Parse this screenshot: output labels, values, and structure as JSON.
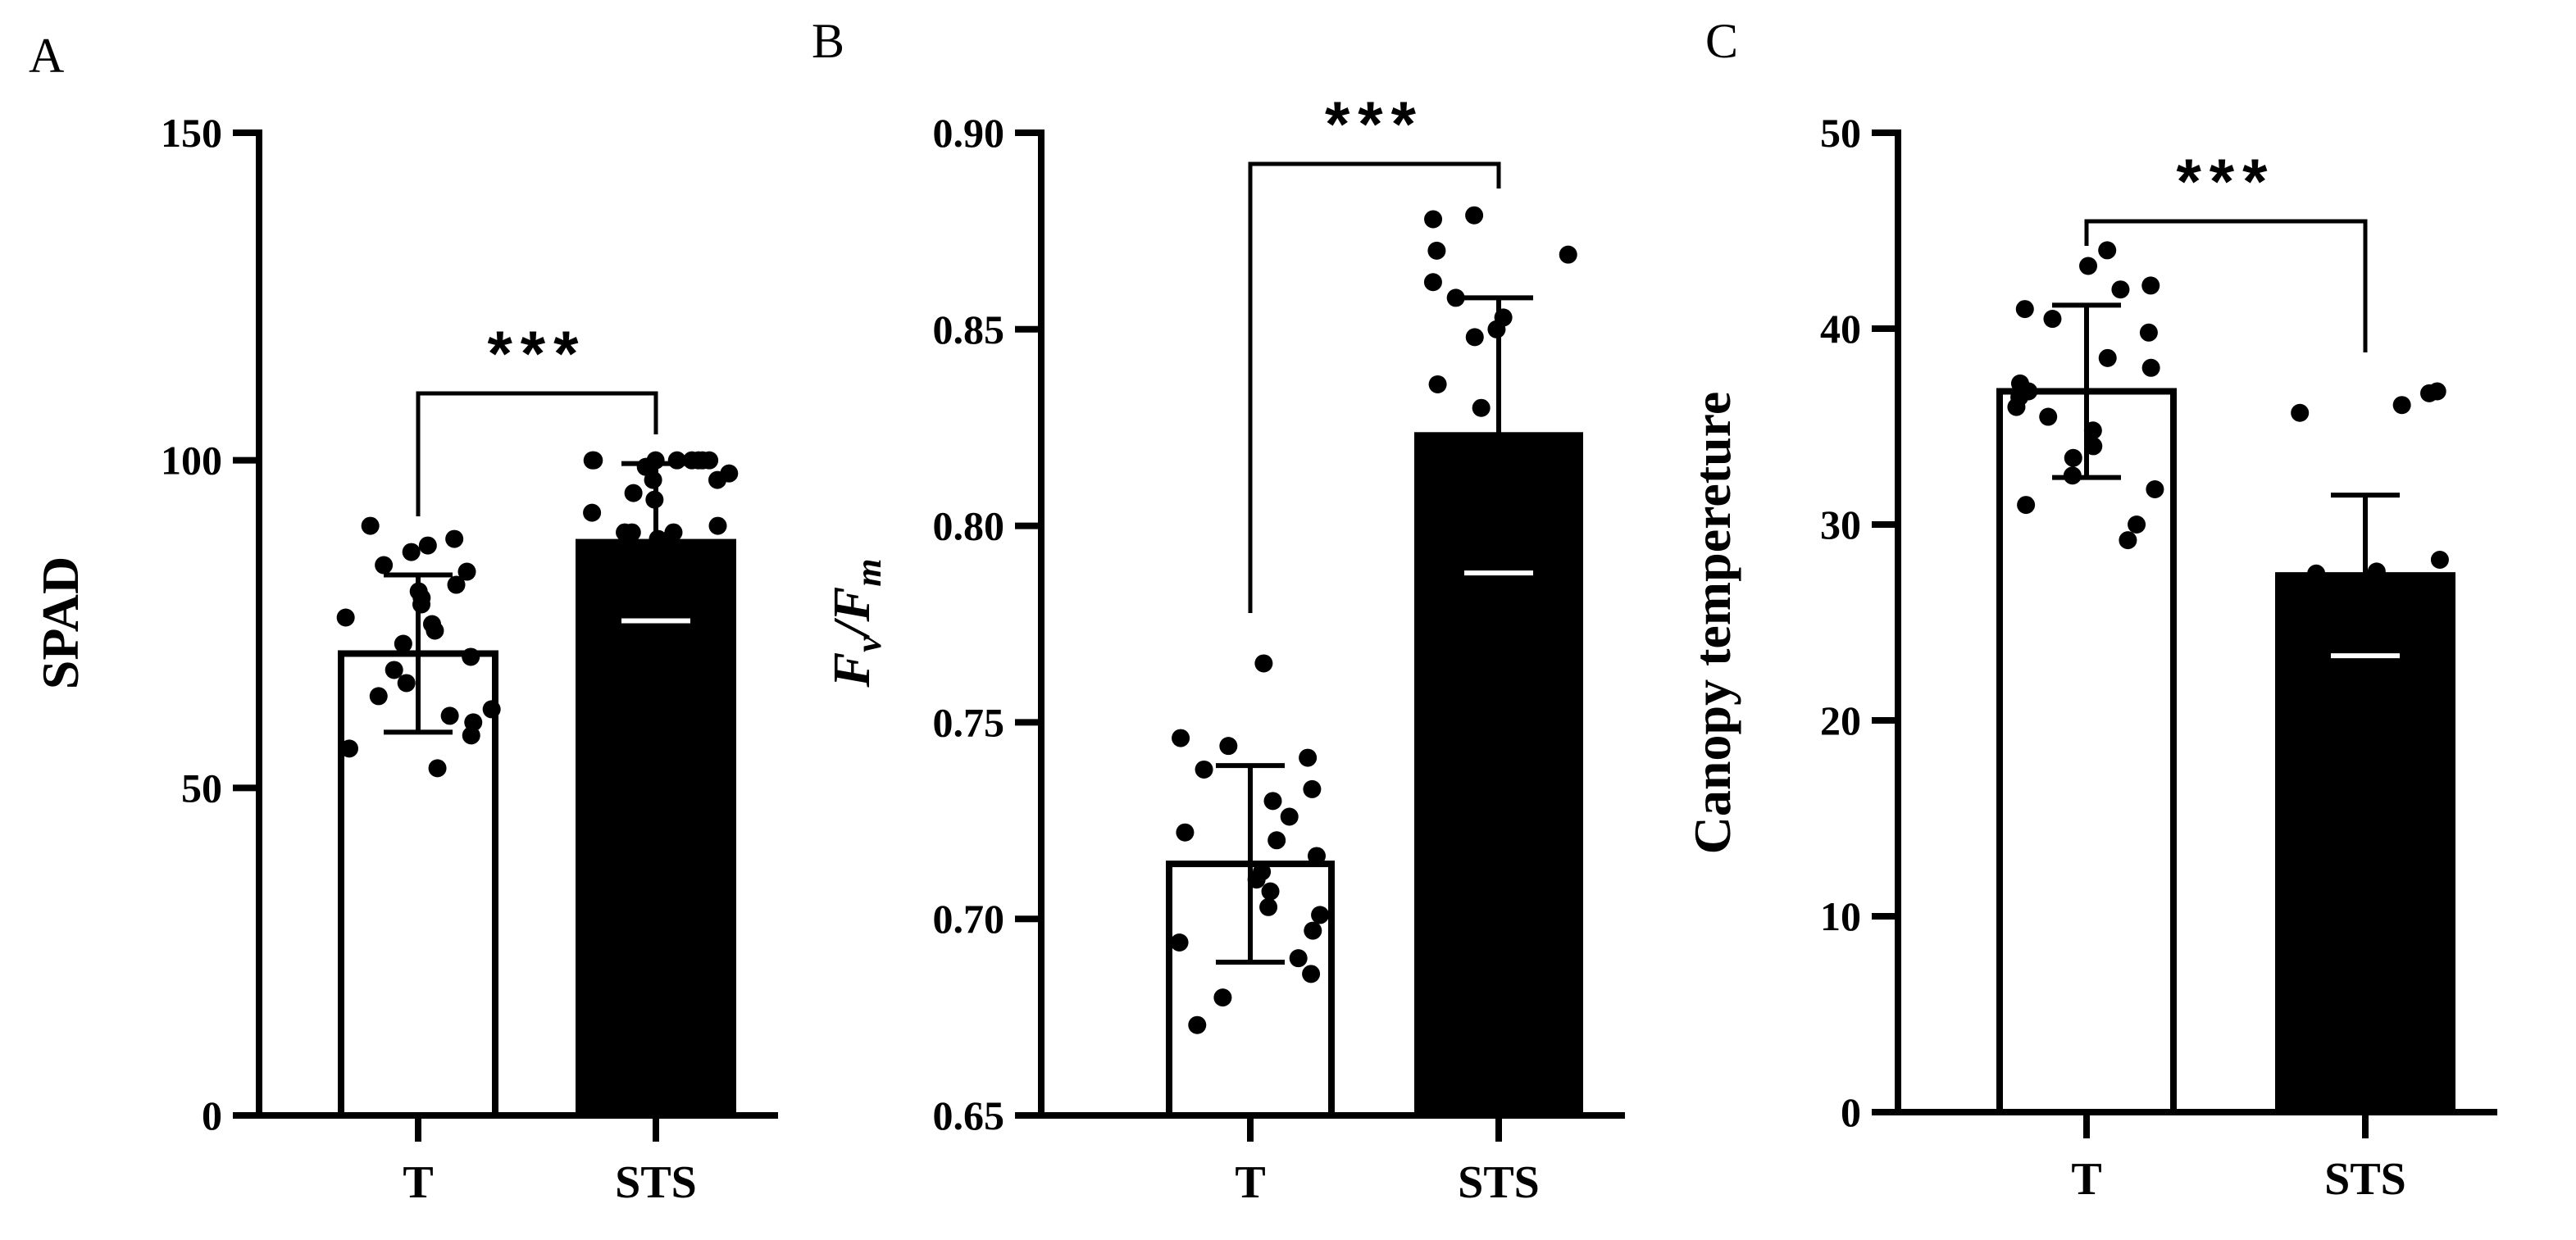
{
  "chart_data": [
    {
      "panel": "A",
      "type": "bar",
      "ylabel": "SPAD",
      "ylabel_subscripts": [],
      "categories": [
        "T",
        "STS"
      ],
      "values": [
        70.5,
        87.5
      ],
      "errors": [
        12,
        12
      ],
      "fills": [
        "#ffffff",
        "#000000"
      ],
      "points": [
        [
          90,
          88,
          87,
          86,
          84,
          83,
          81,
          80,
          79,
          78,
          76,
          75,
          74,
          72,
          70,
          68,
          66,
          64,
          62,
          61,
          60,
          58,
          56,
          53
        ],
        [
          100,
          100,
          100,
          100,
          100,
          100,
          100,
          100,
          99,
          98,
          97,
          97,
          95,
          94,
          92,
          90,
          89,
          89,
          89,
          88,
          88
        ]
      ],
      "ylim": [
        0,
        150
      ],
      "yticks": [
        0,
        50,
        100,
        150
      ],
      "ytick_labels": [
        "0",
        "50",
        "100",
        "150"
      ],
      "significance": "***"
    },
    {
      "panel": "B",
      "type": "bar",
      "ylabel": "Fv/Fm",
      "ylabel_parts": {
        "f1": "F",
        "sub1": "v",
        "slash": "/",
        "f2": "F",
        "sub2": "m"
      },
      "categories": [
        "T",
        "STS"
      ],
      "values": [
        0.714,
        0.823
      ],
      "errors": [
        0.025,
        0.035
      ],
      "fills": [
        "#ffffff",
        "#000000"
      ],
      "points": [
        [
          0.765,
          0.746,
          0.744,
          0.741,
          0.738,
          0.733,
          0.73,
          0.726,
          0.722,
          0.72,
          0.716,
          0.712,
          0.71,
          0.707,
          0.703,
          0.701,
          0.697,
          0.694,
          0.69,
          0.686,
          0.68,
          0.673
        ],
        [
          0.879,
          0.878,
          0.87,
          0.869,
          0.862,
          0.858,
          0.853,
          0.85,
          0.848,
          0.836,
          0.83
        ]
      ],
      "ylim": [
        0.65,
        0.9
      ],
      "yticks": [
        0.65,
        0.7,
        0.75,
        0.8,
        0.85,
        0.9
      ],
      "ytick_labels": [
        "0.65",
        "0.70",
        "0.75",
        "0.80",
        "0.85",
        "0.90"
      ],
      "significance": "***"
    },
    {
      "panel": "C",
      "type": "bar",
      "ylabel": "Canopy tempereture",
      "categories": [
        "T",
        "STS"
      ],
      "values": [
        36.8,
        27.4
      ],
      "errors": [
        4.4,
        4.1
      ],
      "fills": [
        "#ffffff",
        "#000000"
      ],
      "points": [
        [
          44,
          43.2,
          42.2,
          42,
          41,
          40.5,
          39.8,
          38.5,
          38,
          37.2,
          36.8,
          36.5,
          36,
          35.5,
          34.8,
          34,
          33.4,
          32.5,
          31.8,
          31,
          30,
          29.2
        ],
        [
          36.8,
          36.7,
          36.1,
          35.7,
          28.2,
          27.6,
          27.5
        ]
      ],
      "ylim": [
        0,
        50
      ],
      "yticks": [
        0,
        10,
        20,
        30,
        40,
        50
      ],
      "ytick_labels": [
        "0",
        "10",
        "20",
        "30",
        "40",
        "50"
      ],
      "significance": "***"
    }
  ]
}
